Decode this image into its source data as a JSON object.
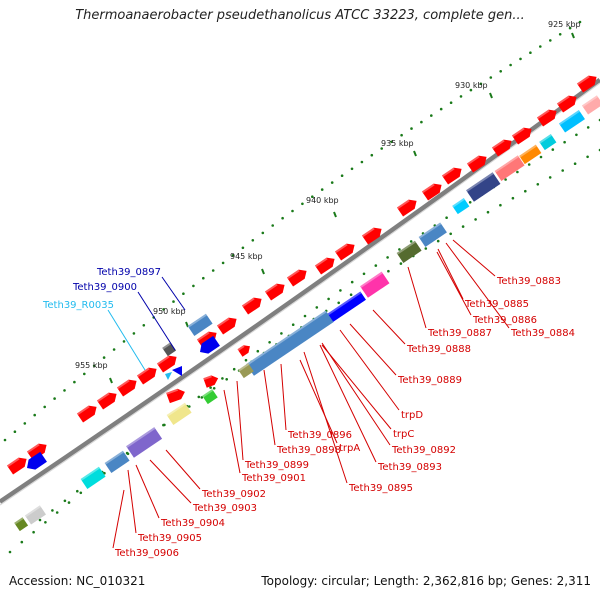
{
  "title": "Thermoanaerobacter pseudethanolicus ATCC 33223, complete gen...",
  "footer": {
    "accession": "Accession: NC_010321",
    "summary": "Topology: circular; Length: 2,362,816 bp; Genes: 2,311"
  },
  "colors": {
    "backbone": "#7f7f7f",
    "forward_gene": "#ff0000",
    "label_red": "#d40000",
    "label_blue": "#0000aa",
    "label_cyan": "#22bbee",
    "tick": "#1a7a1a"
  },
  "ticks": [
    {
      "label": "925 kbp"
    },
    {
      "label": "930 kbp"
    },
    {
      "label": "935 kbp"
    },
    {
      "label": "940 kbp"
    },
    {
      "label": "945 kbp"
    },
    {
      "label": "950 kbp"
    },
    {
      "label": "955 kbp"
    }
  ],
  "gene_labels_red": [
    "Teth39_0883",
    "Teth39_0885",
    "Teth39_0886",
    "Teth39_0884",
    "Teth39_0887",
    "Teth39_0888",
    "Teth39_0889",
    "trpD",
    "trpC",
    "Teth39_0892",
    "Teth39_0893",
    "Teth39_0895",
    "trpA",
    "Teth39_0896",
    "Teth39_0898",
    "Teth39_0899",
    "Teth39_0901",
    "Teth39_0902",
    "Teth39_0903",
    "Teth39_0904",
    "Teth39_0905",
    "Teth39_0906"
  ],
  "gene_labels_other": [
    {
      "label": "Teth39_0897",
      "color": "#0000aa"
    },
    {
      "label": "Teth39_0900",
      "color": "#0000aa"
    },
    {
      "label": "Teth39_R0035",
      "color": "#22bbee"
    }
  ]
}
